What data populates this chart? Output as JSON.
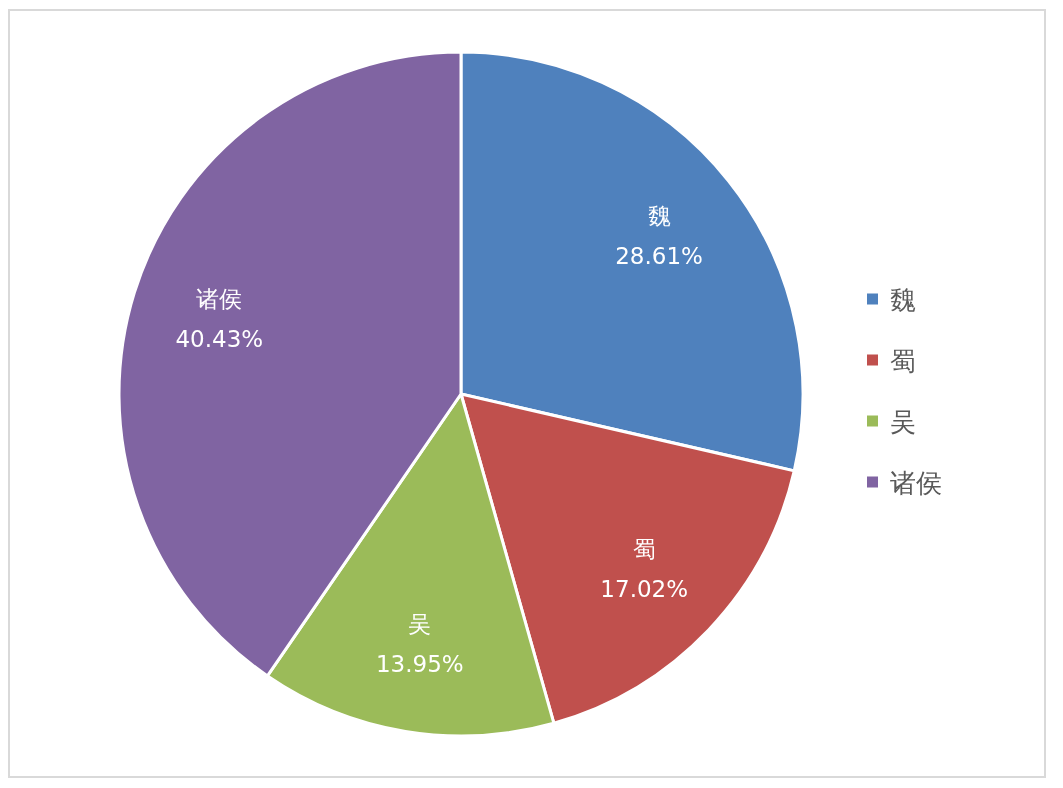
{
  "chart_data": {
    "type": "pie",
    "categories": [
      "魏",
      "蜀",
      "吴",
      "诸侯"
    ],
    "values": [
      28.61,
      17.02,
      13.95,
      40.43
    ],
    "colors": [
      "#4f81bd",
      "#c0504d",
      "#9bbb59",
      "#8064a2"
    ],
    "value_labels": [
      "28.61%",
      "17.02%",
      "13.95%",
      "40.43%"
    ],
    "legend": "right"
  }
}
